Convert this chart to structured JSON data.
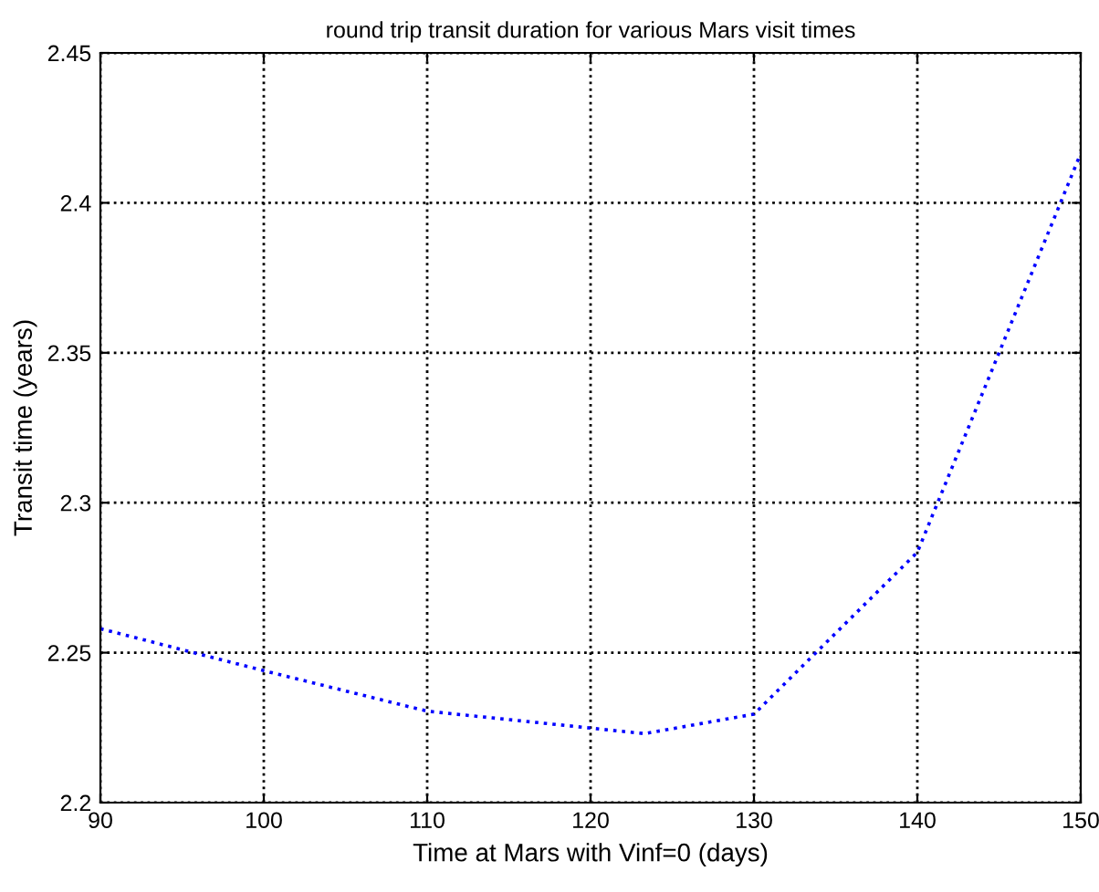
{
  "chart_data": {
    "type": "line",
    "title": "round trip transit duration for various Mars visit times",
    "xlabel": "Time at Mars with Vinf=0 (days)",
    "ylabel": "Transit time (years)",
    "x": [
      90,
      100,
      110,
      123.3,
      130,
      140,
      150
    ],
    "series": [
      {
        "color": "#0000ff",
        "values": [
          2.258,
          2.244,
          2.2305,
          2.223,
          2.2295,
          2.2835,
          2.4165
        ]
      }
    ],
    "xlim": [
      90,
      150
    ],
    "xticks": [
      90,
      100,
      110,
      120,
      130,
      140,
      150
    ],
    "ylim": [
      2.2,
      2.45
    ],
    "yticks": [
      2.2,
      2.25,
      2.3,
      2.35,
      2.4,
      2.45
    ],
    "grid": true,
    "marker": "none",
    "line_style": "dotted"
  }
}
